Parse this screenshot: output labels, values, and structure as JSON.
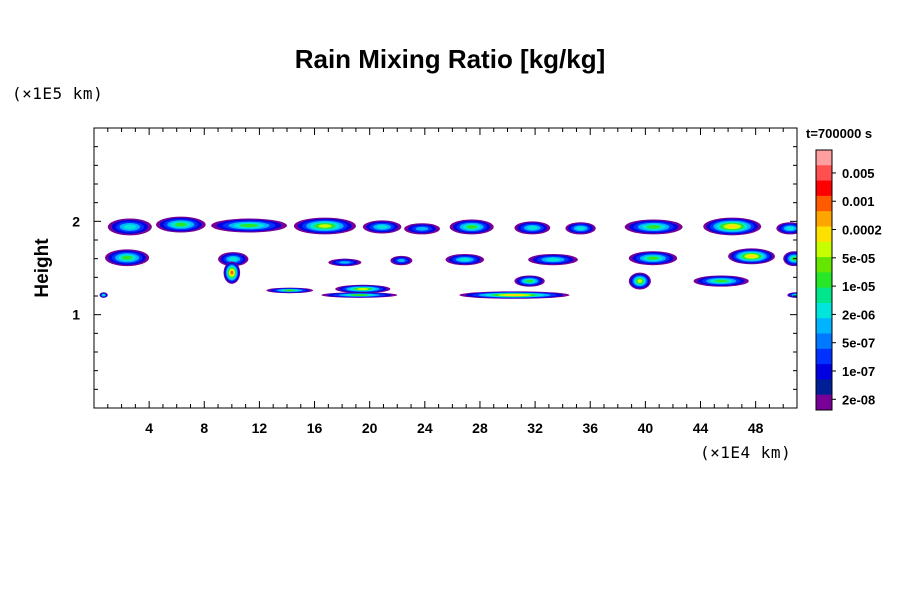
{
  "chart_data": {
    "type": "heatmap",
    "title": "Rain Mixing Ratio [kg/kg]",
    "xlabel": "",
    "ylabel": "Height",
    "x_unit_label": "(×1E4 km)",
    "y_unit_label": "(×1E5 km)",
    "timestamp": "t=700000 s",
    "xlim": [
      0,
      51
    ],
    "ylim": [
      0,
      3
    ],
    "x_ticks": [
      "4",
      "8",
      "12",
      "16",
      "20",
      "24",
      "28",
      "32",
      "36",
      "40",
      "44",
      "48"
    ],
    "y_ticks": [
      "1",
      "2"
    ],
    "colorbar": {
      "labels": [
        "0.005",
        "0.001",
        "0.0002",
        "5e-05",
        "1e-05",
        "2e-06",
        "5e-07",
        "1e-07",
        "2e-08"
      ],
      "colors": [
        "#ff9f9f",
        "#ff5050",
        "#ff0000",
        "#ff5a00",
        "#ffa500",
        "#ffe100",
        "#c8ff00",
        "#64e600",
        "#28e628",
        "#00e68c",
        "#00e6dc",
        "#00b4ff",
        "#0078ff",
        "#0032ff",
        "#0000e1",
        "#001e96",
        "#780096"
      ]
    },
    "series": [
      {
        "cells": [
          {
            "x": 1,
            "y": 1.85,
            "w": 3.2,
            "h": 0.18,
            "level": 4
          },
          {
            "x": 4.5,
            "y": 1.88,
            "w": 3.6,
            "h": 0.17,
            "level": 5
          },
          {
            "x": 8.5,
            "y": 1.88,
            "w": 5.5,
            "h": 0.15,
            "level": 5
          },
          {
            "x": 14.5,
            "y": 1.86,
            "w": 4.5,
            "h": 0.18,
            "level": 6
          },
          {
            "x": 19.5,
            "y": 1.87,
            "w": 2.8,
            "h": 0.14,
            "level": 4
          },
          {
            "x": 22.5,
            "y": 1.86,
            "w": 2.6,
            "h": 0.12,
            "level": 3
          },
          {
            "x": 25.8,
            "y": 1.86,
            "w": 3.2,
            "h": 0.16,
            "level": 5
          },
          {
            "x": 30.5,
            "y": 1.86,
            "w": 2.6,
            "h": 0.14,
            "level": 4
          },
          {
            "x": 34.2,
            "y": 1.86,
            "w": 2.2,
            "h": 0.13,
            "level": 4
          },
          {
            "x": 38.5,
            "y": 1.86,
            "w": 4.2,
            "h": 0.16,
            "level": 5
          },
          {
            "x": 44.2,
            "y": 1.85,
            "w": 4.2,
            "h": 0.19,
            "level": 7
          },
          {
            "x": 49.5,
            "y": 1.86,
            "w": 2.0,
            "h": 0.13,
            "level": 4
          },
          {
            "x": 0.8,
            "y": 1.52,
            "w": 3.2,
            "h": 0.18,
            "level": 5
          },
          {
            "x": 9,
            "y": 1.52,
            "w": 2.2,
            "h": 0.15,
            "level": 4
          },
          {
            "x": 17,
            "y": 1.52,
            "w": 2.4,
            "h": 0.08,
            "level": 3
          },
          {
            "x": 21.5,
            "y": 1.53,
            "w": 1.6,
            "h": 0.1,
            "level": 3
          },
          {
            "x": 25.5,
            "y": 1.53,
            "w": 2.8,
            "h": 0.12,
            "level": 4
          },
          {
            "x": 31.5,
            "y": 1.53,
            "w": 3.6,
            "h": 0.12,
            "level": 4
          },
          {
            "x": 38.8,
            "y": 1.53,
            "w": 3.5,
            "h": 0.15,
            "level": 5
          },
          {
            "x": 46,
            "y": 1.54,
            "w": 3.4,
            "h": 0.17,
            "level": 7
          },
          {
            "x": 50,
            "y": 1.52,
            "w": 1.6,
            "h": 0.16,
            "level": 5
          },
          {
            "x": 9.4,
            "y": 1.33,
            "w": 1.2,
            "h": 0.24,
            "level": 8
          },
          {
            "x": 12.5,
            "y": 1.23,
            "w": 3.4,
            "h": 0.06,
            "level": 5
          },
          {
            "x": 17.5,
            "y": 1.23,
            "w": 4.0,
            "h": 0.09,
            "level": 6
          },
          {
            "x": 16.5,
            "y": 1.18,
            "w": 5.5,
            "h": 0.06,
            "level": 5
          },
          {
            "x": 26.5,
            "y": 1.17,
            "w": 8.0,
            "h": 0.08,
            "level": 7
          },
          {
            "x": 30.5,
            "y": 1.3,
            "w": 2.2,
            "h": 0.12,
            "level": 5
          },
          {
            "x": 38.8,
            "y": 1.27,
            "w": 1.6,
            "h": 0.18,
            "level": 6
          },
          {
            "x": 43.5,
            "y": 1.3,
            "w": 4.0,
            "h": 0.12,
            "level": 5
          },
          {
            "x": 50.3,
            "y": 1.18,
            "w": 1.2,
            "h": 0.06,
            "level": 4
          },
          {
            "x": 0.4,
            "y": 1.18,
            "w": 0.6,
            "h": 0.06,
            "level": 4
          }
        ]
      }
    ],
    "grid": false,
    "legend": "right"
  }
}
